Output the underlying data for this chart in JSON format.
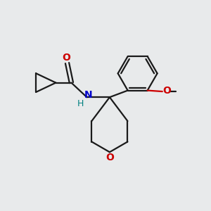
{
  "background_color": "#e8eaeb",
  "bond_color": "#1a1a1a",
  "O_color": "#cc0000",
  "N_color": "#0000cc",
  "H_color": "#008080",
  "line_width": 1.6,
  "figsize": [
    3.0,
    3.0
  ],
  "dpi": 100,
  "xlim": [
    0,
    10
  ],
  "ylim": [
    0,
    10
  ]
}
